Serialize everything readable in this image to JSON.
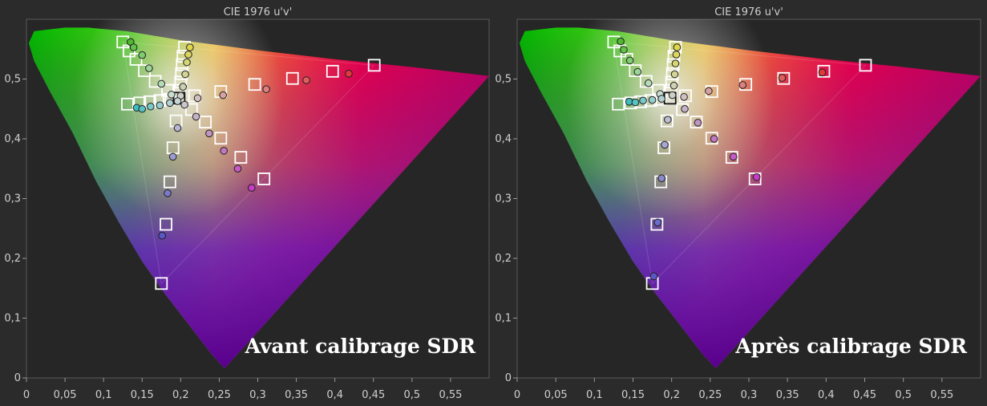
{
  "chart_data": [
    {
      "type": "scatter",
      "title": "CIE 1976 u'v'",
      "caption": "Avant calibrage SDR",
      "xlim": [
        0,
        0.6
      ],
      "ylim": [
        0,
        0.6
      ],
      "x_ticks": [
        "0",
        "0,05",
        "0,1",
        "0,15",
        "0,2",
        "0,25",
        "0,3",
        "0,35",
        "0,4",
        "0,45",
        "0,5",
        "0,55"
      ],
      "y_ticks": [
        "0",
        "0,1",
        "0,2",
        "0,3",
        "0,4",
        "0,5"
      ],
      "gamut": [
        [
          0.451,
          0.523
        ],
        [
          0.125,
          0.562
        ],
        [
          0.175,
          0.158
        ]
      ],
      "white": [
        0.198,
        0.468
      ],
      "targets": [
        [
          0.125,
          0.562
        ],
        [
          0.133,
          0.547
        ],
        [
          0.142,
          0.533
        ],
        [
          0.153,
          0.514
        ],
        [
          0.167,
          0.496
        ],
        [
          0.183,
          0.481
        ],
        [
          0.205,
          0.553
        ],
        [
          0.203,
          0.538
        ],
        [
          0.202,
          0.524
        ],
        [
          0.201,
          0.509
        ],
        [
          0.2,
          0.495
        ],
        [
          0.199,
          0.481
        ],
        [
          0.451,
          0.523
        ],
        [
          0.397,
          0.513
        ],
        [
          0.345,
          0.501
        ],
        [
          0.296,
          0.491
        ],
        [
          0.252,
          0.479
        ],
        [
          0.218,
          0.472
        ],
        [
          0.131,
          0.458
        ],
        [
          0.147,
          0.46
        ],
        [
          0.16,
          0.462
        ],
        [
          0.173,
          0.464
        ],
        [
          0.185,
          0.466
        ],
        [
          0.308,
          0.333
        ],
        [
          0.278,
          0.369
        ],
        [
          0.252,
          0.401
        ],
        [
          0.232,
          0.428
        ],
        [
          0.214,
          0.449
        ],
        [
          0.198,
          0.468
        ],
        [
          0.175,
          0.158
        ],
        [
          0.181,
          0.257
        ],
        [
          0.186,
          0.328
        ],
        [
          0.19,
          0.385
        ],
        [
          0.194,
          0.43
        ]
      ],
      "series": [
        {
          "name": "green",
          "points": [
            [
              0.135,
              0.562
            ],
            [
              0.139,
              0.553
            ],
            [
              0.15,
              0.54
            ],
            [
              0.159,
              0.518
            ],
            [
              0.175,
              0.492
            ],
            [
              0.188,
              0.474
            ]
          ],
          "colors": [
            "#4fb82f",
            "#63c24a",
            "#80cc70",
            "#9cd59a",
            "#b5dcb9",
            "#c9dfd0"
          ]
        },
        {
          "name": "yellow",
          "points": [
            [
              0.212,
              0.553
            ],
            [
              0.21,
              0.541
            ],
            [
              0.208,
              0.528
            ],
            [
              0.206,
              0.508
            ],
            [
              0.203,
              0.487
            ],
            [
              0.2,
              0.472
            ]
          ],
          "colors": [
            "#e0d64b",
            "#dcd65f",
            "#d6d674",
            "#d3d495",
            "#ced0b3",
            "#cccfc5"
          ]
        },
        {
          "name": "red",
          "points": [
            [
              0.418,
              0.509
            ],
            [
              0.363,
              0.498
            ],
            [
              0.311,
              0.483
            ],
            [
              0.255,
              0.473
            ],
            [
              0.222,
              0.468
            ]
          ],
          "colors": [
            "#e23a3a",
            "#df5d5d",
            "#dc8080",
            "#d7a2a2",
            "#d2c0c0"
          ]
        },
        {
          "name": "cyan",
          "points": [
            [
              0.143,
              0.452
            ],
            [
              0.15,
              0.45
            ],
            [
              0.161,
              0.454
            ],
            [
              0.173,
              0.456
            ],
            [
              0.186,
              0.46
            ],
            [
              0.196,
              0.463
            ]
          ],
          "colors": [
            "#3fbdbd",
            "#58c3c3",
            "#7ac9c9",
            "#96cece",
            "#b3d2d2",
            "#c6d4d4"
          ]
        },
        {
          "name": "magenta",
          "points": [
            [
              0.292,
              0.318
            ],
            [
              0.274,
              0.35
            ],
            [
              0.256,
              0.38
            ],
            [
              0.237,
              0.409
            ],
            [
              0.22,
              0.437
            ],
            [
              0.205,
              0.457
            ]
          ],
          "colors": [
            "#c83cc8",
            "#c65ac6",
            "#c277c2",
            "#c095c0",
            "#c6b2c6",
            "#cbc6cb"
          ]
        },
        {
          "name": "blue",
          "points": [
            [
              0.176,
              0.238
            ],
            [
              0.183,
              0.309
            ],
            [
              0.19,
              0.37
            ],
            [
              0.196,
              0.418
            ]
          ],
          "colors": [
            "#5a58c8",
            "#7a7acd",
            "#9b9bd2",
            "#b5b5d6"
          ]
        }
      ]
    },
    {
      "type": "scatter",
      "title": "CIE 1976 u'v'",
      "caption": "Après calibrage SDR",
      "xlim": [
        0,
        0.6
      ],
      "ylim": [
        0,
        0.6
      ],
      "x_ticks": [
        "0",
        "0,05",
        "0,1",
        "0,15",
        "0,2",
        "0,25",
        "0,3",
        "0,35",
        "0,4",
        "0,45",
        "0,5",
        "0,55"
      ],
      "y_ticks": [
        "0",
        "0,1",
        "0,2",
        "0,3",
        "0,4",
        "0,5"
      ],
      "gamut": [
        [
          0.451,
          0.523
        ],
        [
          0.125,
          0.562
        ],
        [
          0.175,
          0.158
        ]
      ],
      "white": [
        0.198,
        0.468
      ],
      "targets": [
        [
          0.125,
          0.562
        ],
        [
          0.133,
          0.547
        ],
        [
          0.142,
          0.533
        ],
        [
          0.153,
          0.514
        ],
        [
          0.167,
          0.496
        ],
        [
          0.183,
          0.481
        ],
        [
          0.205,
          0.553
        ],
        [
          0.203,
          0.538
        ],
        [
          0.202,
          0.524
        ],
        [
          0.201,
          0.509
        ],
        [
          0.2,
          0.495
        ],
        [
          0.199,
          0.481
        ],
        [
          0.451,
          0.523
        ],
        [
          0.397,
          0.513
        ],
        [
          0.345,
          0.501
        ],
        [
          0.296,
          0.491
        ],
        [
          0.252,
          0.479
        ],
        [
          0.218,
          0.472
        ],
        [
          0.131,
          0.458
        ],
        [
          0.147,
          0.46
        ],
        [
          0.16,
          0.462
        ],
        [
          0.173,
          0.464
        ],
        [
          0.185,
          0.466
        ],
        [
          0.308,
          0.333
        ],
        [
          0.278,
          0.369
        ],
        [
          0.252,
          0.401
        ],
        [
          0.232,
          0.428
        ],
        [
          0.214,
          0.449
        ],
        [
          0.198,
          0.468
        ],
        [
          0.175,
          0.158
        ],
        [
          0.181,
          0.257
        ],
        [
          0.186,
          0.328
        ],
        [
          0.19,
          0.385
        ],
        [
          0.194,
          0.43
        ]
      ],
      "series": [
        {
          "name": "green",
          "points": [
            [
              0.134,
              0.563
            ],
            [
              0.138,
              0.549
            ],
            [
              0.146,
              0.531
            ],
            [
              0.156,
              0.512
            ],
            [
              0.17,
              0.493
            ],
            [
              0.185,
              0.475
            ]
          ],
          "colors": [
            "#4fb82f",
            "#63c24a",
            "#80cc70",
            "#9cd59a",
            "#b5dcb9",
            "#c9dfd0"
          ]
        },
        {
          "name": "yellow",
          "points": [
            [
              0.207,
              0.553
            ],
            [
              0.206,
              0.541
            ],
            [
              0.205,
              0.526
            ],
            [
              0.204,
              0.508
            ],
            [
              0.203,
              0.489
            ],
            [
              0.201,
              0.473
            ]
          ],
          "colors": [
            "#e0d64b",
            "#dcd65f",
            "#d6d674",
            "#d3d495",
            "#ced0b3",
            "#cccfc5"
          ]
        },
        {
          "name": "red",
          "points": [
            [
              0.395,
              0.511
            ],
            [
              0.343,
              0.502
            ],
            [
              0.292,
              0.49
            ],
            [
              0.248,
              0.48
            ],
            [
              0.216,
              0.47
            ]
          ],
          "colors": [
            "#e23a3a",
            "#df5d5d",
            "#dc8080",
            "#d7a2a2",
            "#d2c0c0"
          ]
        },
        {
          "name": "cyan",
          "points": [
            [
              0.145,
              0.462
            ],
            [
              0.153,
              0.461
            ],
            [
              0.163,
              0.464
            ],
            [
              0.175,
              0.465
            ],
            [
              0.187,
              0.467
            ]
          ],
          "colors": [
            "#3fbdbd",
            "#58c3c3",
            "#7ac9c9",
            "#96cece",
            "#b3d2d2"
          ]
        },
        {
          "name": "magenta",
          "points": [
            [
              0.31,
              0.336
            ],
            [
              0.28,
              0.37
            ],
            [
              0.255,
              0.4
            ],
            [
              0.234,
              0.427
            ],
            [
              0.217,
              0.45
            ]
          ],
          "colors": [
            "#c83cc8",
            "#c65ac6",
            "#c277c2",
            "#c095c0",
            "#c6b2c6"
          ]
        },
        {
          "name": "blue",
          "points": [
            [
              0.177,
              0.17
            ],
            [
              0.182,
              0.26
            ],
            [
              0.187,
              0.334
            ],
            [
              0.191,
              0.39
            ],
            [
              0.195,
              0.432
            ]
          ],
          "colors": [
            "#5a58c8",
            "#6b6bcb",
            "#8a8ad0",
            "#a7a7d4",
            "#bdbdd6"
          ]
        }
      ]
    }
  ]
}
